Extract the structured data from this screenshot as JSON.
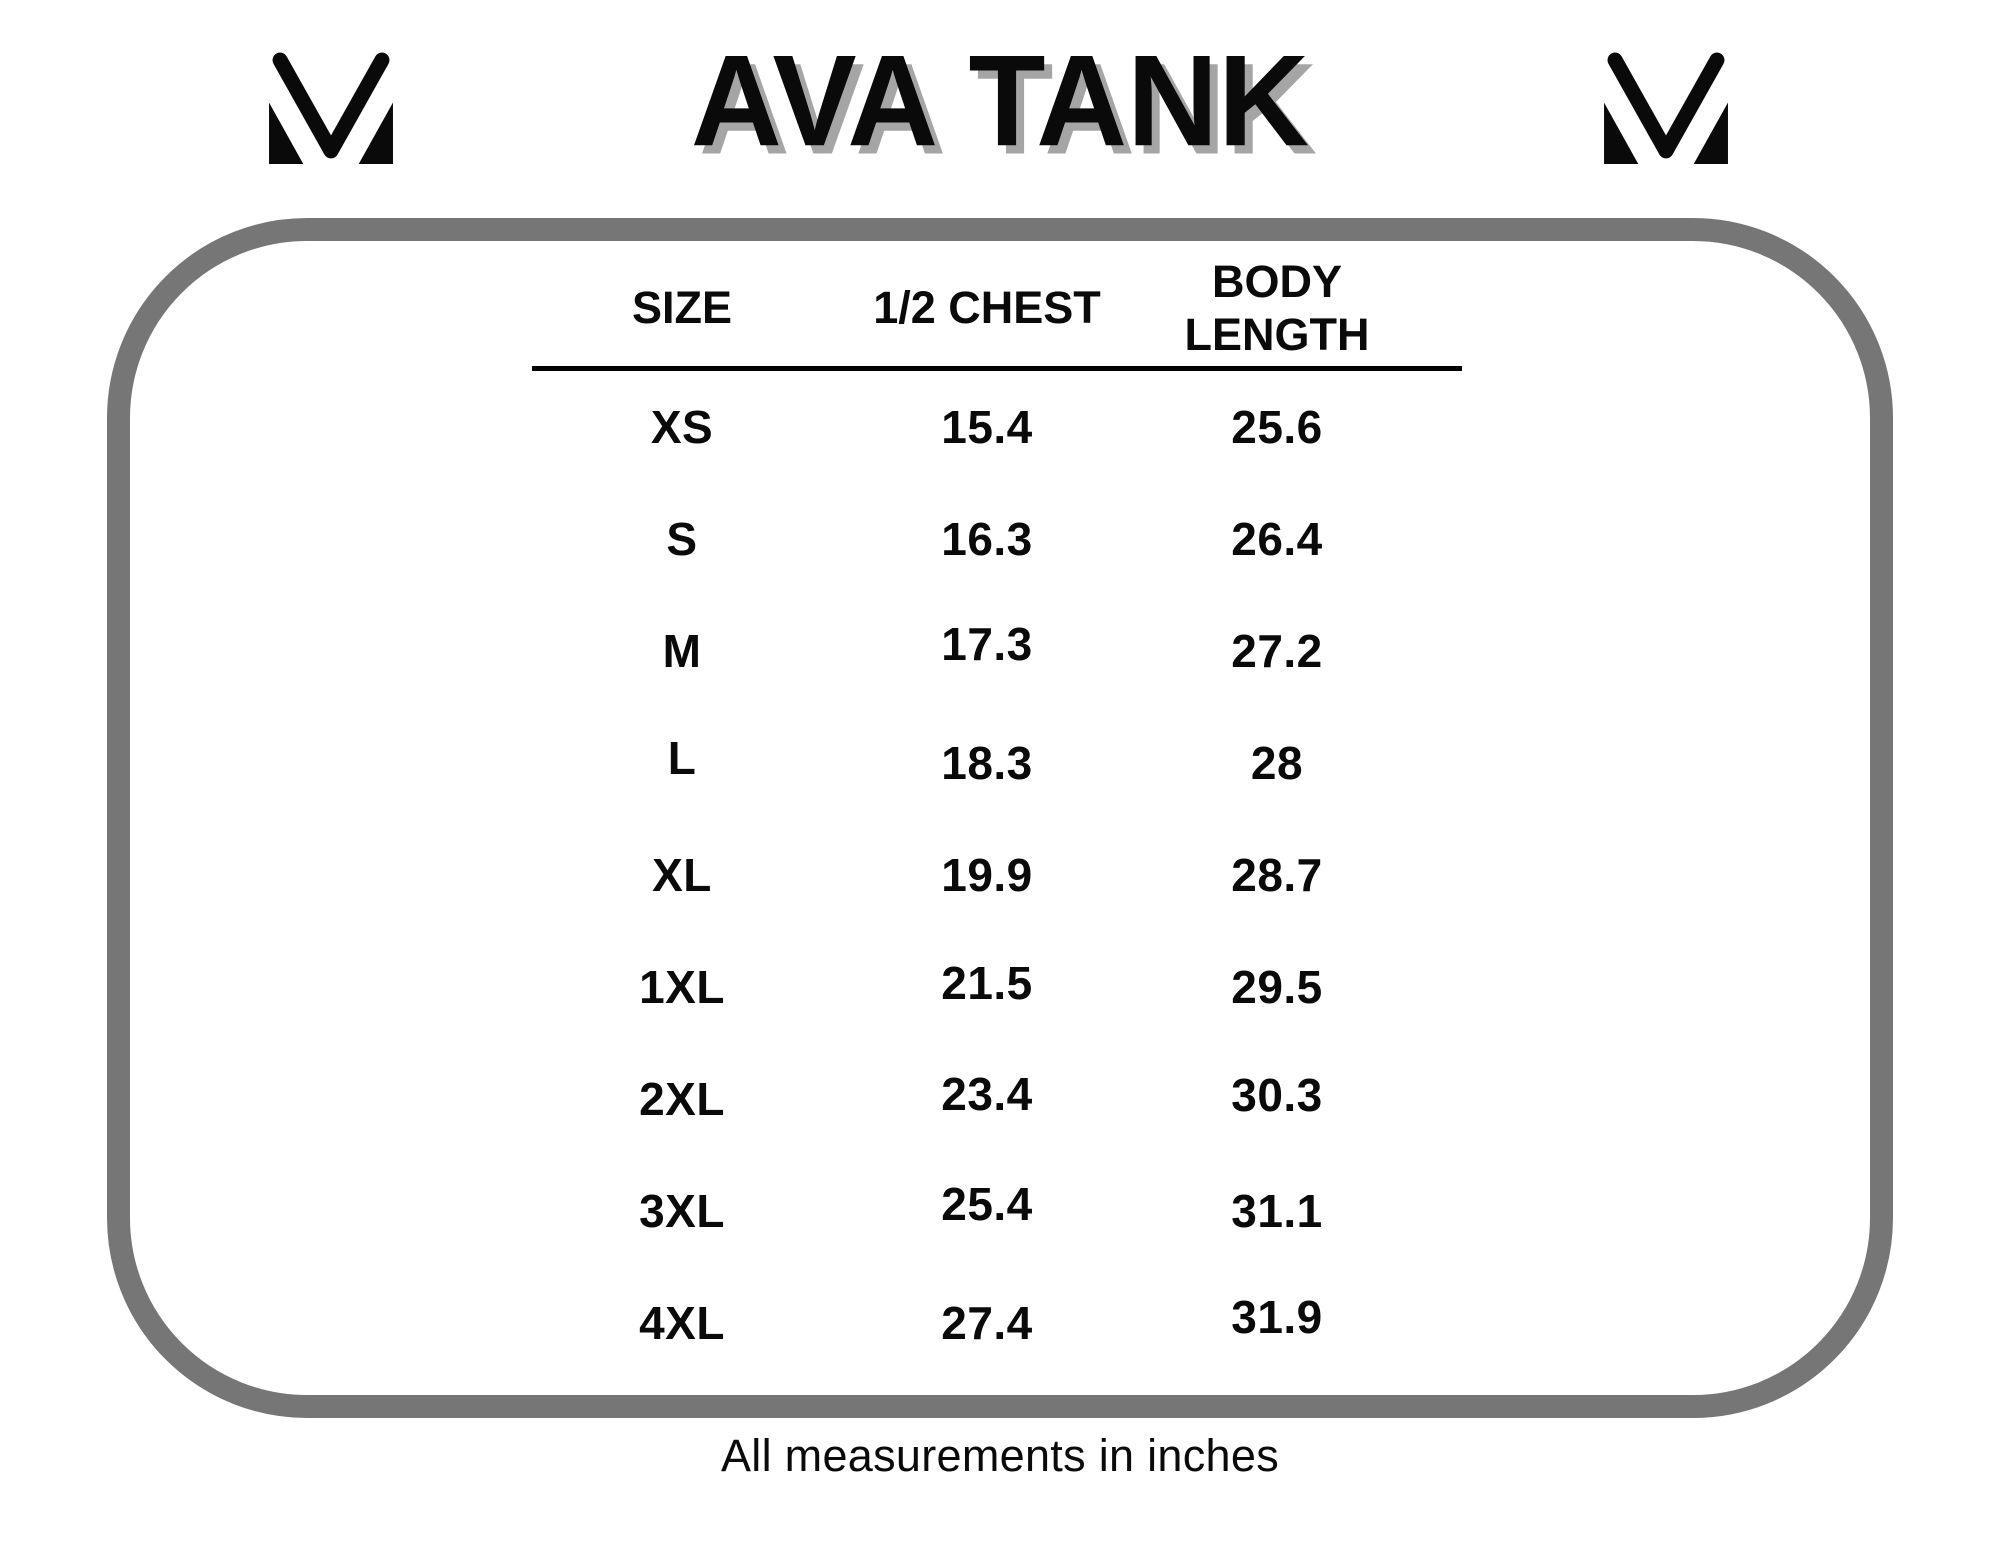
{
  "header": {
    "title": "AVA TANK"
  },
  "icons": {
    "left_logo": "mv-monogram-logo",
    "right_logo": "mv-monogram-logo"
  },
  "colors": {
    "background": "#ffffff",
    "text": "#0a0a0a",
    "title_shadow": "#a5a5a5",
    "frame_border": "#767676"
  },
  "footer": {
    "note": "All measurements in inches"
  },
  "chart_data": {
    "type": "table",
    "title": "AVA TANK",
    "columns": [
      "SIZE",
      "1/2 CHEST",
      "BODY LENGTH"
    ],
    "rows": [
      [
        "XS",
        15.4,
        25.6
      ],
      [
        "S",
        16.3,
        26.4
      ],
      [
        "M",
        17.3,
        27.2
      ],
      [
        "L",
        18.3,
        28
      ],
      [
        "XL",
        19.9,
        28.7
      ],
      [
        "1XL",
        21.5,
        29.5
      ],
      [
        "2XL",
        23.4,
        30.3
      ],
      [
        "3XL",
        25.4,
        31.1
      ],
      [
        "4XL",
        27.4,
        31.9
      ]
    ],
    "note": "All measurements in inches",
    "layout": {
      "grid": "off",
      "header_rule": "on",
      "units": "inches"
    }
  }
}
